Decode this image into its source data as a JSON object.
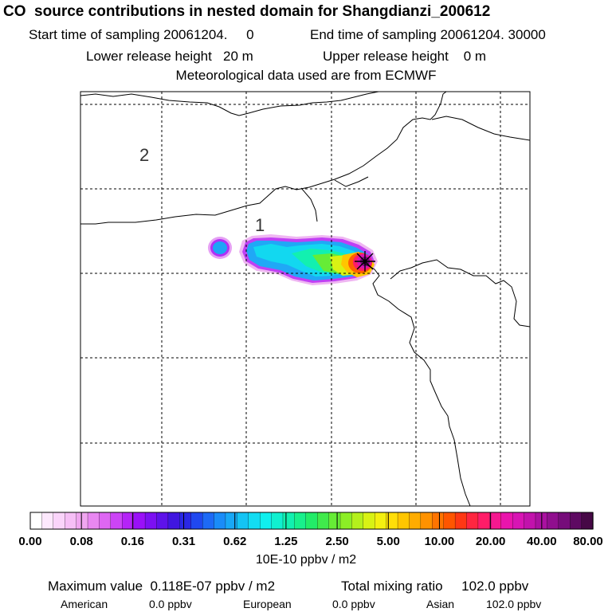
{
  "header": {
    "title": "CO  source contributions in nested domain for Shangdianzi_200612",
    "sampling_start": "Start time of sampling 20061204.     0",
    "sampling_end": "End time of sampling 20061204. 30000",
    "release_lower": "Lower release height   20 m",
    "release_upper": "Upper release height    0 m",
    "met_data": "Meteorological data used are from ECMWF"
  },
  "map": {
    "domain_labels": [
      "2",
      "1"
    ],
    "grid": "dashed",
    "marker": "receptor-star-icon"
  },
  "colorbar": {
    "tick_labels": [
      "0.00",
      "0.08",
      "0.16",
      "0.31",
      "0.62",
      "1.25",
      "2.50",
      "5.00",
      "10.00",
      "20.00",
      "40.00",
      "80.00"
    ],
    "unit": "10E-10 ppbv / m2",
    "colors": [
      "#ffffff",
      "#fde8fd",
      "#fad4fa",
      "#f6bff6",
      "#f0a6f0",
      "#e887f1",
      "#de66f3",
      "#cc44f6",
      "#b523f8",
      "#9a10f8",
      "#7c10f2",
      "#5e12ea",
      "#4016e0",
      "#2a28e6",
      "#2048f0",
      "#1d6af6",
      "#1a8cf8",
      "#18a8f6",
      "#14c4f4",
      "#12dcf2",
      "#10f0ee",
      "#10f0d0",
      "#12f0b0",
      "#18f08c",
      "#22ec68",
      "#40ea4c",
      "#66ec36",
      "#8cee26",
      "#b4f01c",
      "#d8f214",
      "#f4f010",
      "#ffde08",
      "#ffc600",
      "#ffac00",
      "#ff9200",
      "#ff7400",
      "#ff5600",
      "#ff3814",
      "#ff2640",
      "#ff1c68",
      "#f51890",
      "#ea14ac",
      "#d814b4",
      "#c212ac",
      "#aa10a0",
      "#900e8e",
      "#760c7a",
      "#5e0a62",
      "#460846"
    ]
  },
  "footer": {
    "max_value": "Maximum value  0.118E-07 ppbv / m2",
    "total_mixing": "Total mixing ratio     102.0 ppbv",
    "american_label": "American",
    "american_value": "0.0 ppbv",
    "european_label": "European",
    "european_value": "0.0 ppbv",
    "asian_label": "Asian",
    "asian_value": "102.0 ppbv"
  }
}
